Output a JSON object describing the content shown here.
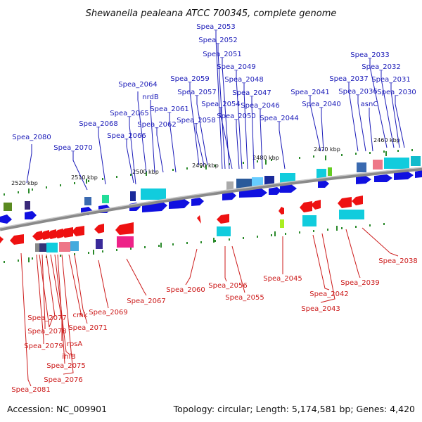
{
  "title": "Shewanella pealeana ATCC 700345, complete genome",
  "footer": {
    "accession": "Accession: NC_009901",
    "summary": "Topology: circular; Length: 5,174,581 bp; Genes: 4,420"
  },
  "colors": {
    "forward_label": "#1a1ab8",
    "reverse_label": "#cc1a1a",
    "forward_gene": "#1010e0",
    "reverse_gene": "#ee1111",
    "backbone": "#888888",
    "tick": "#2a8a2a"
  },
  "ticks": [
    "2520 kbp",
    "2510 kbp",
    "2500 kbp",
    "2490 kbp",
    "2480 kbp",
    "2470 kbp",
    "2460 kbp"
  ],
  "forward_labels": [
    "Spea_2080",
    "Spea_2070",
    "Spea_2068",
    "Spea_2066",
    "Spea_2065",
    "Spea_2064",
    "nrdB",
    "Spea_2062",
    "Spea_2061",
    "Spea_2059",
    "Spea_2058",
    "Spea_2057",
    "Spea_2053",
    "Spea_2052",
    "Spea_2051",
    "Spea_2049",
    "Spea_2048",
    "Spea_2047",
    "Spea_2054",
    "Spea_2050",
    "Spea_2046",
    "Spea_2044",
    "Spea_2041",
    "Spea_2040",
    "Spea_2037",
    "Spea_2036",
    "asnC",
    "Spea_2033",
    "Spea_2032",
    "Spea_2031",
    "Spea_2030"
  ],
  "reverse_labels": [
    "Spea_2077",
    "cmk",
    "Spea_2078",
    "Spea_2071",
    "Spea_2069",
    "Spea_2079",
    "rpsA",
    "ihfB",
    "Spea_2075",
    "Spea_2076",
    "Spea_2081",
    "Spea_2067",
    "Spea_2060",
    "Spea_2056",
    "Spea_2055",
    "Spea_2045",
    "Spea_2042",
    "Spea_2043",
    "Spea_2039",
    "Spea_2038"
  ]
}
